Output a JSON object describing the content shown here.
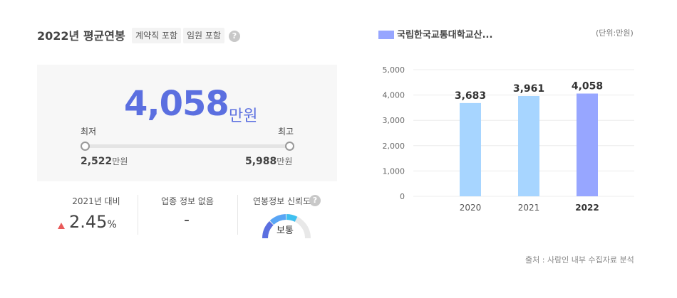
{
  "summary": {
    "title": "2022년 평균연봉",
    "chips": [
      "계약직 포함",
      "임원 포함"
    ],
    "help_glyph": "?",
    "average_value": "4,058",
    "average_unit": "만원",
    "min_label": "최저",
    "max_label": "최고",
    "min_value": "2,522",
    "max_value": "5,988",
    "value_unit": "만원"
  },
  "stats": {
    "yoy_label": "2021년 대비",
    "yoy_value": "2.45",
    "yoy_unit": "%",
    "industry_label": "업종 정보 없음",
    "industry_value": "-",
    "reliability_label": "연봉정보 신뢰도",
    "reliability_value": "보통",
    "reliability_level_fraction": 0.5
  },
  "chart_header": {
    "legend": "국립한국교통대학교산...",
    "unit": "(단위:만원)"
  },
  "chart_data": {
    "type": "bar",
    "categories": [
      "2020",
      "2021",
      "2022"
    ],
    "values": [
      3683,
      3961,
      4058
    ],
    "value_labels": [
      "3,683",
      "3,961",
      "4,058"
    ],
    "ylim": [
      0,
      5000
    ],
    "y_ticks": [
      0,
      1000,
      2000,
      3000,
      4000,
      5000
    ],
    "y_tick_labels": [
      "0",
      "1,000",
      "2,000",
      "3,000",
      "4,000",
      "5,000"
    ],
    "colors": [
      "#a7d5ff",
      "#a7d5ff",
      "#97a6ff"
    ],
    "grid": true
  },
  "footer": {
    "source": "출처 : 사람인 내부 수집자료 분석"
  }
}
